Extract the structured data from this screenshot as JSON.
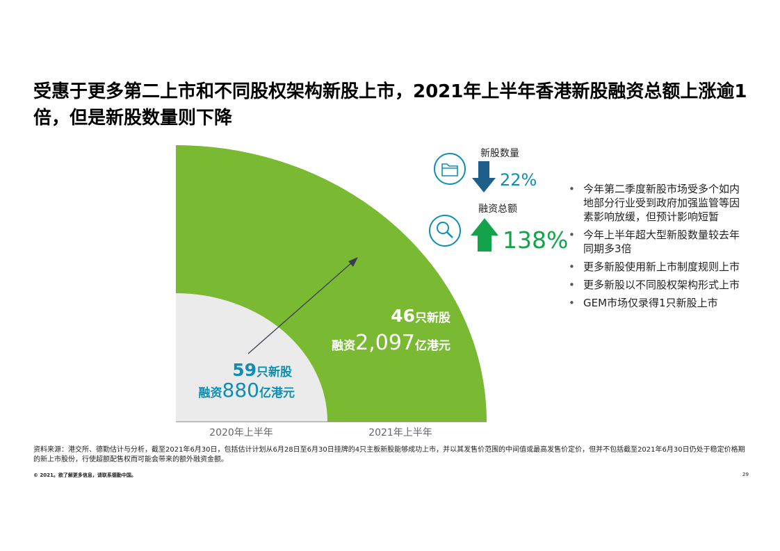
{
  "title": "受惠于更多第二上市和不同股权架构新股上市，2021年上半年香港新股融资总额上涨逾1倍，但是新股数量则下降",
  "chart_data": {
    "type": "area",
    "categories": [
      "2020年上半年",
      "2021年上半年"
    ],
    "series": [
      {
        "name": "2020年上半年",
        "count": 59,
        "count_unit": "只新股",
        "funds_label": "融资",
        "funds": "880",
        "funds_unit": "亿港元",
        "color": "#ebebeb"
      },
      {
        "name": "2021年上半年",
        "count": 46,
        "count_unit": "只新股",
        "funds_label": "融资",
        "funds": "2,097",
        "funds_unit": "亿港元",
        "color": "#7ab932"
      }
    ]
  },
  "metrics": [
    {
      "label": "新股数量",
      "direction": "down",
      "value": "22%",
      "icon": "folder-icon"
    },
    {
      "label": "融资总额",
      "direction": "up",
      "value": "138%",
      "icon": "magnifier-icon"
    }
  ],
  "bullets": [
    "今年第二季度新股市场受多个如内地部分行业受到政府加强监管等因素影响放缓，但预计影响短暂",
    "今年上半年超大型新股数量较去年同期多3倍",
    "更多新股使用新上市制度规则上市",
    "更多新股以不同股权架构形式上市",
    "GEM市场仅录得1只新股上市"
  ],
  "footnote": "资料来源：港交所、德勤估计与分析，截至2021年6月30日，包括估计计划从6月28日至6月30日挂牌的4只主板新股能够成功上市，并以其发售价范围的中间值或最高发售价定价，但并不包括截至2021年6月30日仍处于稳定价格期的新上市股份，行使超额配售权而可能会带来的额外融资金额。",
  "copyright": "© 2021。欲了解更多信息，请联系德勤中国。",
  "page_number": "29",
  "colors": {
    "green": "#7ab932",
    "teal": "#0d8fb5",
    "navy": "#1e5f8a",
    "up_green": "#13a34a",
    "grey": "#ebebeb"
  }
}
